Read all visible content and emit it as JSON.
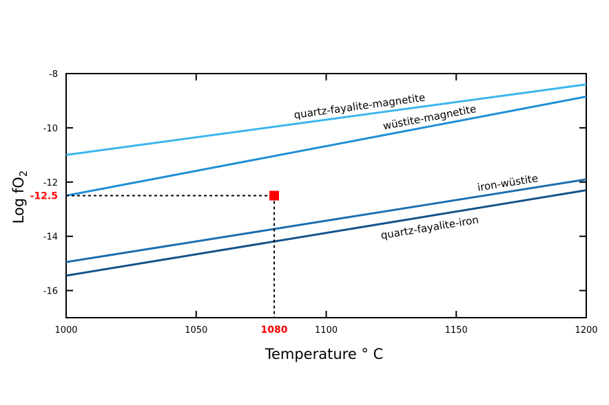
{
  "chart_data": {
    "type": "line",
    "xlabel": "Temperature ° C",
    "ylabel_main": "Log fO",
    "ylabel_sub": "2",
    "xlim": [
      1000,
      1200
    ],
    "ylim": [
      -17,
      -8
    ],
    "x_ticks": [
      1000,
      1050,
      1100,
      1150,
      1200
    ],
    "y_ticks": [
      -8,
      -10,
      -12,
      -14,
      -16
    ],
    "grid": false,
    "series": [
      {
        "name": "quartz-fayalite-magnetite",
        "x": [
          1000,
          1200
        ],
        "y": [
          -11.0,
          -8.4
        ],
        "color": "#3bb6ee"
      },
      {
        "name": "wüstite-magnetite",
        "x": [
          1000,
          1200
        ],
        "y": [
          -12.5,
          -8.85
        ],
        "color": "#1f8fd6"
      },
      {
        "name": "iron-wüstite",
        "x": [
          1000,
          1200
        ],
        "y": [
          -14.95,
          -11.9
        ],
        "color": "#1c6fb0"
      },
      {
        "name": "quartz-fayalite-iron",
        "x": [
          1000,
          1200
        ],
        "y": [
          -15.45,
          -12.3
        ],
        "color": "#14528a"
      }
    ],
    "highlight": {
      "x": 1080,
      "y": -12.5,
      "x_label": "1080",
      "y_label": "-12.5",
      "color": "#ff0000"
    }
  }
}
